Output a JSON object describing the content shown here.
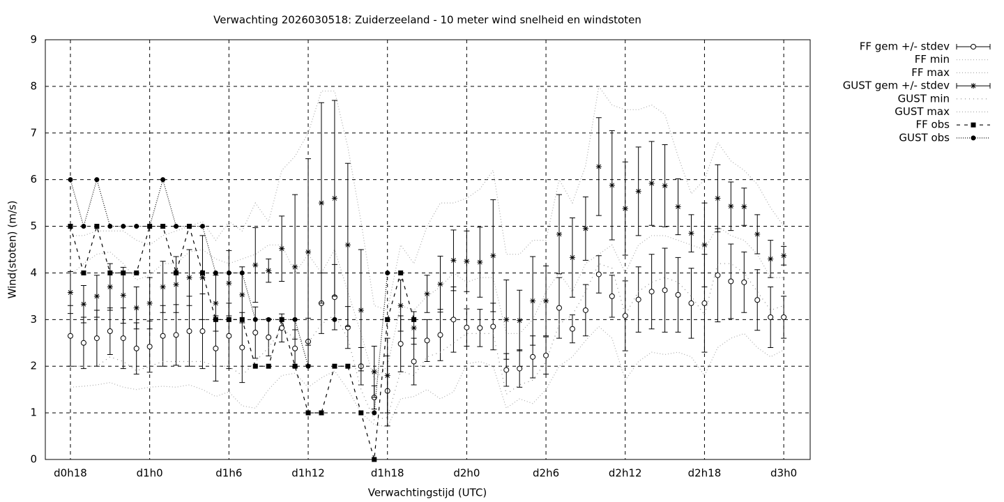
{
  "chart_data": {
    "type": "errorbar",
    "title": "Verwachting 2026030518: Zuiderzeeland - 10 meter wind snelheid en windstoten",
    "x_label": "Verwachtingstijd (UTC)",
    "y_label": "Wind(stoten) (m/s)",
    "x": [
      18,
      19,
      20,
      21,
      22,
      23,
      24,
      25,
      26,
      27,
      28,
      29,
      30,
      31,
      32,
      33,
      34,
      35,
      36,
      37,
      38,
      39,
      40,
      41,
      42,
      43,
      44,
      45,
      46,
      47,
      48,
      49,
      50,
      51,
      52,
      53,
      54,
      55,
      56,
      57,
      58,
      59,
      60,
      61,
      62,
      63,
      64,
      65,
      66,
      67,
      68,
      69,
      70,
      71,
      72
    ],
    "xlim": [
      16.1,
      74
    ],
    "xticks": [
      {
        "value": 18,
        "label": "d0h18"
      },
      {
        "value": 24,
        "label": "d1h0"
      },
      {
        "value": 30,
        "label": "d1h6"
      },
      {
        "value": 36,
        "label": "d1h12"
      },
      {
        "value": 42,
        "label": "d1h18"
      },
      {
        "value": 48,
        "label": "d2h0"
      },
      {
        "value": 54,
        "label": "d2h6"
      },
      {
        "value": 60,
        "label": "d2h12"
      },
      {
        "value": 66,
        "label": "d2h18"
      },
      {
        "value": 72,
        "label": "d3h0"
      }
    ],
    "ylim": [
      0,
      9
    ],
    "yticks": [
      0,
      1,
      2,
      3,
      4,
      5,
      6,
      7,
      8,
      9
    ],
    "grid": true,
    "legend": "outside-top-right",
    "series": [
      {
        "name": "FF gem +/- stdev",
        "color": "#000000",
        "style": "errorbar",
        "marker": "open-circle",
        "values": [
          2.65,
          2.5,
          2.6,
          2.75,
          2.6,
          2.38,
          2.42,
          2.65,
          2.67,
          2.75,
          2.75,
          2.38,
          2.65,
          2.4,
          2.72,
          2.62,
          2.82,
          2.38,
          2.53,
          3.35,
          3.48,
          2.83,
          2.0,
          1.33,
          1.47,
          2.48,
          2.1,
          2.55,
          2.67,
          3.0,
          2.83,
          2.82,
          2.85,
          1.92,
          1.95,
          2.2,
          2.23,
          3.25,
          2.8,
          3.2,
          3.97,
          3.5,
          3.08,
          3.43,
          3.6,
          3.63,
          3.53,
          3.35,
          3.35,
          3.95,
          3.82,
          3.8,
          3.42,
          3.05,
          3.05
        ],
        "errors": [
          0.65,
          0.55,
          0.6,
          0.5,
          0.65,
          0.55,
          0.55,
          0.65,
          0.65,
          0.75,
          0.8,
          0.7,
          0.7,
          0.75,
          0.55,
          0.4,
          0.3,
          0.4,
          0.5,
          0.65,
          0.7,
          0.45,
          0.4,
          0.25,
          0.75,
          0.6,
          0.5,
          0.45,
          0.55,
          0.7,
          0.4,
          0.4,
          0.5,
          0.35,
          0.4,
          0.45,
          0.4,
          0.65,
          0.3,
          0.55,
          0.4,
          0.45,
          0.75,
          0.7,
          0.8,
          0.9,
          0.8,
          0.75,
          1.05,
          1.0,
          0.8,
          0.65,
          0.65,
          0.65,
          0.45
        ]
      },
      {
        "name": "FF min",
        "color": "#aaaaaa",
        "style": "dotted",
        "values": [
          1.55,
          1.57,
          1.6,
          1.65,
          1.55,
          1.5,
          1.55,
          1.57,
          1.55,
          1.6,
          1.5,
          1.35,
          1.45,
          1.15,
          1.1,
          1.5,
          1.8,
          1.85,
          1.55,
          1.75,
          1.9,
          1.5,
          1.0,
          0.75,
          0.7,
          1.3,
          1.35,
          1.5,
          1.3,
          1.45,
          2.05,
          2.1,
          2.0,
          1.1,
          1.3,
          1.2,
          1.5,
          2.0,
          2.2,
          2.55,
          2.85,
          2.6,
          1.7,
          2.1,
          2.3,
          2.25,
          2.3,
          2.2,
          1.8,
          2.4,
          2.6,
          2.7,
          2.4,
          2.2,
          2.35
        ]
      },
      {
        "name": "FF max",
        "color": "#aaaaaa",
        "style": "dotted",
        "values": [
          3.95,
          4.2,
          4.4,
          4.45,
          4.2,
          3.85,
          3.95,
          4.2,
          4.2,
          4.45,
          4.5,
          4.3,
          4.2,
          4.3,
          4.4,
          4.6,
          4.6,
          4.0,
          4.4,
          4.0,
          4.5,
          3.6,
          2.7,
          1.7,
          2.0,
          3.3,
          3.2,
          3.5,
          3.7,
          4.0,
          3.8,
          3.9,
          3.9,
          2.7,
          2.7,
          3.0,
          3.6,
          4.0,
          3.6,
          4.2,
          4.4,
          4.6,
          4.0,
          4.6,
          4.8,
          4.8,
          4.7,
          4.6,
          4.5,
          5.0,
          4.8,
          4.7,
          4.4,
          3.9,
          3.9
        ]
      },
      {
        "name": "GUST gem +/- stdev",
        "color": "#000000",
        "style": "errorbar",
        "marker": "star",
        "values": [
          3.58,
          3.33,
          3.5,
          3.7,
          3.52,
          3.25,
          3.35,
          3.7,
          3.75,
          3.9,
          3.9,
          3.35,
          3.78,
          3.53,
          4.17,
          4.05,
          4.52,
          4.13,
          4.45,
          5.5,
          5.6,
          4.6,
          3.2,
          1.88,
          1.8,
          3.3,
          2.82,
          3.55,
          3.76,
          4.27,
          4.25,
          4.23,
          4.37,
          3.0,
          2.98,
          3.4,
          3.4,
          4.83,
          4.33,
          4.95,
          6.28,
          5.88,
          5.38,
          5.75,
          5.92,
          5.87,
          5.42,
          4.85,
          4.6,
          5.6,
          5.43,
          5.42,
          4.83,
          4.3,
          4.37
        ],
        "errors": [
          0.45,
          0.4,
          0.45,
          0.5,
          0.6,
          0.45,
          0.55,
          0.55,
          0.6,
          0.6,
          0.9,
          0.6,
          0.7,
          0.6,
          0.8,
          0.25,
          0.7,
          1.55,
          2.0,
          2.15,
          2.1,
          1.75,
          1.3,
          0.55,
          0.8,
          0.55,
          0.35,
          0.4,
          0.6,
          0.65,
          0.65,
          0.75,
          1.2,
          0.85,
          0.65,
          0.95,
          0.75,
          0.85,
          0.85,
          0.68,
          1.05,
          1.17,
          1.0,
          0.95,
          0.9,
          0.88,
          0.6,
          0.4,
          0.9,
          0.72,
          0.52,
          0.4,
          0.42,
          0.4,
          0.2
        ]
      },
      {
        "name": "GUST min",
        "color": "#888888",
        "style": "sparse-dotted",
        "values": [
          2.0,
          2.0,
          2.0,
          2.2,
          2.1,
          1.9,
          2.0,
          2.1,
          2.1,
          2.1,
          2.1,
          2.0,
          2.0,
          1.8,
          2.1,
          2.4,
          2.8,
          2.6,
          2.5,
          2.9,
          3.1,
          2.6,
          1.5,
          0.85,
          0.9,
          1.9,
          1.8,
          2.2,
          2.3,
          2.5,
          2.7,
          2.7,
          2.7,
          1.4,
          1.6,
          1.7,
          2.1,
          2.9,
          3.1,
          3.6,
          4.2,
          4.1,
          3.1,
          3.6,
          3.8,
          3.9,
          3.8,
          3.5,
          3.1,
          4.2,
          4.2,
          4.0,
          3.6,
          3.2,
          3.3
        ]
      },
      {
        "name": "GUST max",
        "color": "#aaaaaa",
        "style": "dotted",
        "values": [
          4.8,
          4.8,
          4.9,
          4.9,
          4.9,
          4.7,
          4.6,
          4.8,
          4.9,
          5.0,
          5.1,
          4.7,
          5.1,
          4.9,
          5.5,
          5.1,
          6.2,
          6.5,
          7.0,
          7.9,
          7.9,
          6.7,
          5.1,
          3.3,
          3.2,
          4.6,
          4.2,
          5.0,
          5.5,
          5.5,
          5.6,
          5.8,
          6.2,
          4.4,
          4.4,
          4.7,
          4.7,
          6.0,
          5.5,
          6.3,
          8.0,
          7.6,
          7.5,
          7.5,
          7.6,
          7.4,
          6.5,
          5.7,
          6.0,
          6.8,
          6.4,
          6.2,
          5.9,
          5.4,
          5.0
        ]
      },
      {
        "name": "FF obs",
        "color": "#000000",
        "style": "dashed",
        "marker": "square",
        "values": [
          5,
          4,
          5,
          4,
          4,
          4,
          5,
          5,
          4,
          5,
          4,
          3,
          3,
          3,
          2,
          2,
          3,
          2,
          1,
          1,
          2,
          2,
          1,
          0,
          3,
          4,
          3,
          null,
          null,
          null,
          null,
          null,
          null,
          null,
          null,
          null,
          null,
          null,
          null,
          null,
          null,
          null,
          null,
          null,
          null,
          null,
          null,
          null,
          null,
          null,
          null,
          null,
          null,
          null,
          null
        ]
      },
      {
        "name": "GUST obs",
        "color": "#000000",
        "style": "dotted-black",
        "marker": "dot",
        "values": [
          6,
          5,
          6,
          5,
          5,
          5,
          5,
          6,
          5,
          5,
          5,
          4,
          4,
          4,
          3,
          3,
          3,
          3,
          2,
          null,
          3,
          null,
          null,
          1,
          4,
          null,
          null,
          null,
          null,
          null,
          null,
          null,
          null,
          null,
          null,
          null,
          null,
          null,
          null,
          null,
          null,
          null,
          null,
          null,
          null,
          null,
          null,
          null,
          null,
          null,
          null,
          null,
          null,
          null,
          null
        ]
      }
    ]
  }
}
